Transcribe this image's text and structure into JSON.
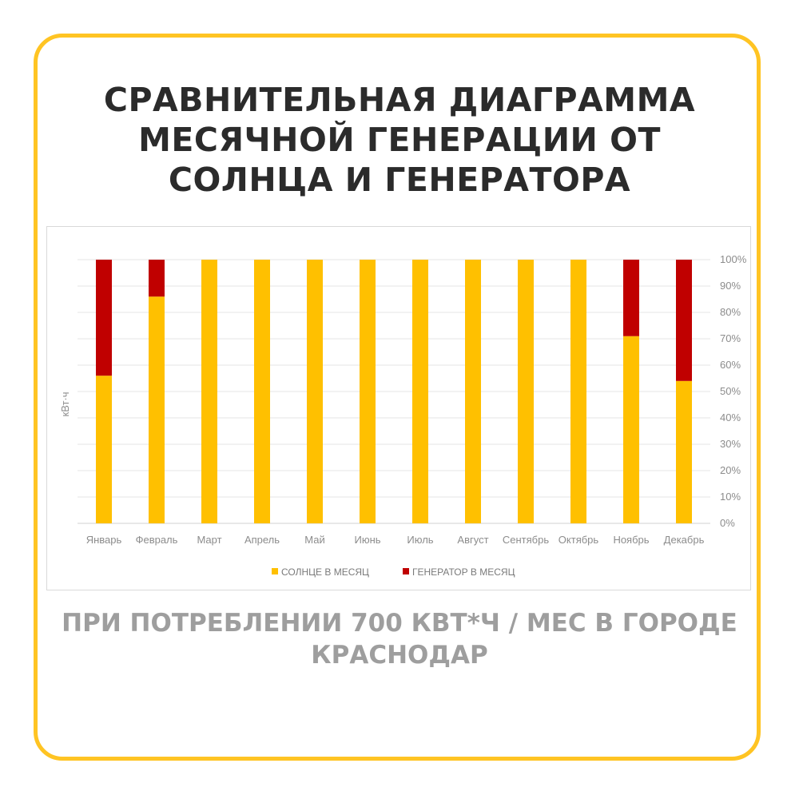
{
  "title_lines": [
    "СРАВНИТЕЛЬНАЯ ДИАГРАММА",
    "МЕСЯЧНОЙ ГЕНЕРАЦИИ ОТ",
    "СОЛНЦА И ГЕНЕРАТОРА"
  ],
  "subtitle_lines": [
    "ПРИ ПОТРЕБЛЕНИИ 700 КВТ*Ч / МЕС В ГОРОДЕ",
    "КРАСНОДАР"
  ],
  "colors": {
    "frame": "#ffc423",
    "solar": "#ffc000",
    "generator": "#c00000",
    "grid": "#e6e6e6"
  },
  "chart_data": {
    "type": "bar",
    "stacked": true,
    "categories": [
      "Январь",
      "Февраль",
      "Март",
      "Апрель",
      "Май",
      "Июнь",
      "Июль",
      "Август",
      "Сентябрь",
      "Октябрь",
      "Ноябрь",
      "Декабрь"
    ],
    "series": [
      {
        "name": "СОЛНЦЕ В МЕСЯЦ",
        "color": "#ffc000",
        "values": [
          56,
          86,
          100,
          100,
          100,
          100,
          100,
          100,
          100,
          100,
          71,
          54
        ]
      },
      {
        "name": "ГЕНЕРАТОР В МЕСЯЦ",
        "color": "#c00000",
        "values": [
          44,
          14,
          0,
          0,
          0,
          0,
          0,
          0,
          0,
          0,
          29,
          46
        ]
      }
    ],
    "ylabel": "кВт·ч",
    "yticks": [
      "0%",
      "10%",
      "20%",
      "30%",
      "40%",
      "50%",
      "60%",
      "70%",
      "80%",
      "90%",
      "100%"
    ],
    "ylim": [
      0,
      100
    ],
    "grid": true,
    "y_axis_side": "right",
    "legend_position": "bottom"
  }
}
